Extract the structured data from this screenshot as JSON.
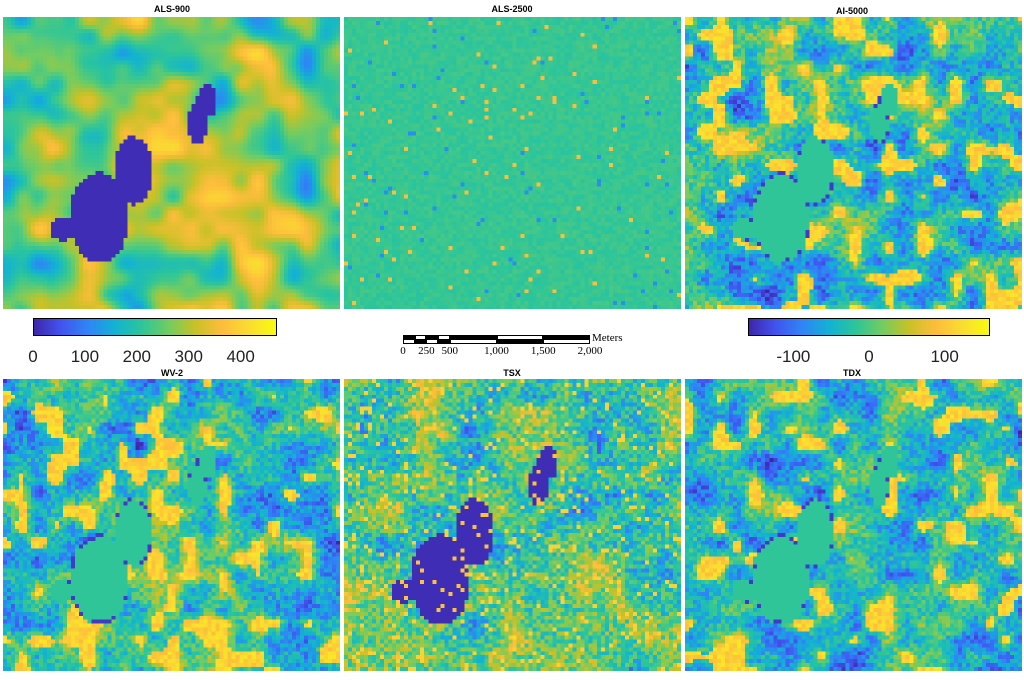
{
  "panels": [
    {
      "id": "als900",
      "title": "ALS-900",
      "pattern": "abs"
    },
    {
      "id": "als2500",
      "title": "ALS-2500",
      "pattern": "flat"
    },
    {
      "id": "ai5000",
      "title": "AI-5000",
      "pattern": "diff"
    },
    {
      "id": "wv2",
      "title": "WV-2",
      "pattern": "diff"
    },
    {
      "id": "tsx",
      "title": "TSX",
      "pattern": "tsx"
    },
    {
      "id": "tdx",
      "title": "TDX",
      "pattern": "diff"
    }
  ],
  "colorbar_left": {
    "ticks": [
      "0",
      "100",
      "200",
      "300",
      "400"
    ],
    "min": 0,
    "max": 470
  },
  "colorbar_right": {
    "ticks": [
      "-100",
      "0",
      "100"
    ],
    "min": -160,
    "max": 160
  },
  "colormap": [
    "#3e26a8",
    "#4154f0",
    "#2f85f5",
    "#12b2d3",
    "#2cc59b",
    "#72cc62",
    "#c8c127",
    "#fdbd3c",
    "#fadd31",
    "#f9fb0e"
  ],
  "scalebar": {
    "unit": "Meters",
    "labels": [
      "0",
      "250",
      "500",
      "1,000",
      "1,500",
      "2,000"
    ]
  }
}
